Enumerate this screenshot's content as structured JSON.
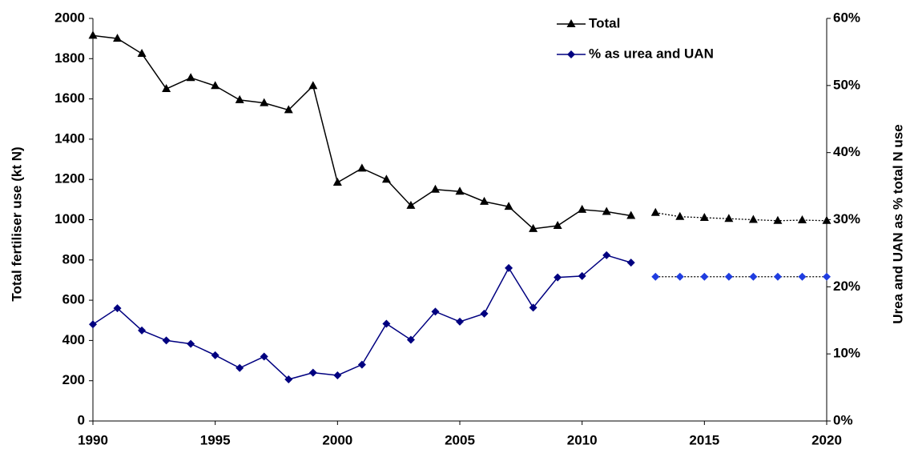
{
  "chart_data": {
    "type": "line",
    "y_label": "Total fertiliser use (kt N)",
    "y2_label": "Urea and UAN as % total N use",
    "xlim": [
      1990,
      2020
    ],
    "xticks": [
      1990,
      1995,
      2000,
      2005,
      2010,
      2015,
      2020
    ],
    "ylim": [
      0,
      2000
    ],
    "yticks": [
      0,
      200,
      400,
      600,
      800,
      1000,
      1200,
      1400,
      1600,
      1800,
      2000
    ],
    "y2lim": [
      0,
      60
    ],
    "y2ticks": [
      {
        "value": 0,
        "label": "0%"
      },
      {
        "value": 10,
        "label": "10%"
      },
      {
        "value": 20,
        "label": "20%"
      },
      {
        "value": 30,
        "label": "30%"
      },
      {
        "value": 40,
        "label": "40%"
      },
      {
        "value": 50,
        "label": "50%"
      },
      {
        "value": 60,
        "label": "60%"
      }
    ],
    "legend": "top-right",
    "series": [
      {
        "name": "Total",
        "color": "#000000",
        "marker": "triangle",
        "line": "solid",
        "x": [
          1990,
          1991,
          1992,
          1993,
          1994,
          1995,
          1996,
          1997,
          1998,
          1999,
          2000,
          2001,
          2002,
          2003,
          2004,
          2005,
          2006,
          2007,
          2008,
          2009,
          2010,
          2011,
          2012
        ],
        "values": [
          1915,
          1900,
          1825,
          1650,
          1705,
          1665,
          1595,
          1580,
          1545,
          1665,
          1185,
          1255,
          1200,
          1070,
          1150,
          1140,
          1090,
          1065,
          955,
          970,
          1050,
          1040,
          1020
        ]
      },
      {
        "color": "#000000",
        "marker": "triangle",
        "line": "dotted",
        "x": [
          2013,
          2014,
          2015,
          2016,
          2017,
          2018,
          2019,
          2020
        ],
        "values": [
          1035,
          1015,
          1010,
          1005,
          1000,
          995,
          998,
          995
        ]
      },
      {
        "name": "% as urea and UAN",
        "color": "#000080",
        "marker": "diamond",
        "line": "solid",
        "axis": "y2",
        "x": [
          1990,
          1991,
          1992,
          1993,
          1994,
          1995,
          1996,
          1997,
          1998,
          1999,
          2000,
          2001,
          2002,
          2003,
          2004,
          2005,
          2006,
          2007,
          2008,
          2009,
          2010,
          2011,
          2012
        ],
        "values": [
          14.4,
          16.8,
          13.5,
          12,
          11.5,
          9.8,
          7.9,
          9.6,
          6.2,
          7.2,
          6.8,
          8.4,
          14.5,
          12.1,
          16.3,
          14.8,
          16,
          22.8,
          16.9,
          21.4,
          21.6,
          24.7,
          23.6
        ]
      },
      {
        "color": "#1f3de0",
        "marker": "diamond",
        "line": "dotted",
        "axis": "y2",
        "x": [
          2013,
          2014,
          2015,
          2016,
          2017,
          2018,
          2019,
          2020
        ],
        "values": [
          21.5,
          21.5,
          21.5,
          21.5,
          21.5,
          21.5,
          21.5,
          21.5
        ]
      }
    ]
  }
}
